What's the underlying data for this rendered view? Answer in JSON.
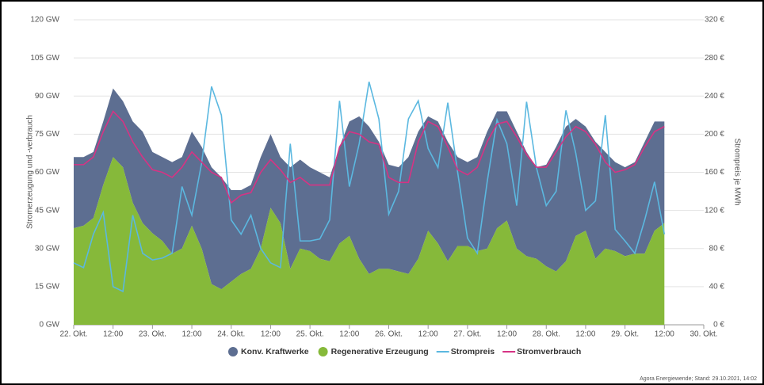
{
  "chart_data": {
    "type": "area-line",
    "ylabel": "Stromerzeugung und -verbrauch",
    "y2label": "Strompreis je MWh",
    "footer": "Agora Energiewende; Stand: 29.10.2021, 14:02",
    "grid": true,
    "legend": "bottom",
    "xlim": [
      0,
      192
    ],
    "xticks": [
      {
        "value": 0,
        "label": "22. Okt."
      },
      {
        "value": 12,
        "label": "12:00"
      },
      {
        "value": 24,
        "label": "23. Okt."
      },
      {
        "value": 36,
        "label": "12:00"
      },
      {
        "value": 48,
        "label": "24. Okt."
      },
      {
        "value": 60,
        "label": "12:00"
      },
      {
        "value": 72,
        "label": "25. Okt."
      },
      {
        "value": 84,
        "label": "12:00"
      },
      {
        "value": 96,
        "label": "26. Okt."
      },
      {
        "value": 108,
        "label": "12:00"
      },
      {
        "value": 120,
        "label": "27. Okt."
      },
      {
        "value": 132,
        "label": "12:00"
      },
      {
        "value": 144,
        "label": "28. Okt."
      },
      {
        "value": 156,
        "label": "12:00"
      },
      {
        "value": 168,
        "label": "29. Okt."
      },
      {
        "value": 180,
        "label": "12:00"
      },
      {
        "value": 192,
        "label": "30. Okt."
      }
    ],
    "ylim": [
      0,
      120
    ],
    "yticks": [
      {
        "value": 0,
        "label": "0 GW"
      },
      {
        "value": 15,
        "label": "15 GW"
      },
      {
        "value": 30,
        "label": "30 GW"
      },
      {
        "value": 45,
        "label": "45 GW"
      },
      {
        "value": 60,
        "label": "60 GW"
      },
      {
        "value": 75,
        "label": "75 GW"
      },
      {
        "value": 90,
        "label": "90 GW"
      },
      {
        "value": 105,
        "label": "105 GW"
      },
      {
        "value": 120,
        "label": "120 GW"
      }
    ],
    "y2lim": [
      0,
      320
    ],
    "y2ticks": [
      {
        "value": 0,
        "label": "0 €"
      },
      {
        "value": 40,
        "label": "40 €"
      },
      {
        "value": 80,
        "label": "80 €"
      },
      {
        "value": 120,
        "label": "120 €"
      },
      {
        "value": 160,
        "label": "160 €"
      },
      {
        "value": 200,
        "label": "200 €"
      },
      {
        "value": 240,
        "label": "240 €"
      },
      {
        "value": 280,
        "label": "280 €"
      },
      {
        "value": 320,
        "label": "320 €"
      }
    ],
    "x": [
      0,
      3,
      6,
      9,
      12,
      15,
      18,
      21,
      24,
      27,
      30,
      33,
      36,
      39,
      42,
      45,
      48,
      51,
      54,
      57,
      60,
      63,
      66,
      69,
      72,
      75,
      78,
      81,
      84,
      87,
      90,
      93,
      96,
      99,
      102,
      105,
      108,
      111,
      114,
      117,
      120,
      123,
      126,
      129,
      132,
      135,
      138,
      141,
      144,
      147,
      150,
      153,
      156,
      159,
      162,
      165,
      168,
      171,
      174,
      177,
      180
    ],
    "series": [
      {
        "name": "Konv. Kraftwerke",
        "kind": "area",
        "color": "#5d6e91",
        "values": [
          28,
          27,
          26,
          25,
          27,
          26,
          32,
          36,
          32,
          33,
          36,
          36,
          37,
          40,
          46,
          44,
          36,
          33,
          33,
          36,
          29,
          26,
          40,
          35,
          33,
          34,
          33,
          38,
          45,
          56,
          58,
          50,
          41,
          41,
          46,
          50,
          45,
          48,
          47,
          35,
          33,
          37,
          46,
          46,
          43,
          46,
          41,
          36,
          40,
          49,
          53,
          46,
          41,
          46,
          38,
          35,
          35,
          36,
          44,
          43,
          40
        ]
      },
      {
        "name": "Regenerative Erzeugung",
        "kind": "area",
        "color": "#86b93a",
        "values": [
          38,
          39,
          42,
          55,
          66,
          62,
          48,
          40,
          36,
          33,
          28,
          30,
          39,
          30,
          16,
          14,
          17,
          20,
          22,
          30,
          46,
          40,
          22,
          30,
          29,
          26,
          25,
          32,
          35,
          26,
          20,
          22,
          22,
          21,
          20,
          26,
          37,
          32,
          25,
          31,
          31,
          29,
          30,
          38,
          41,
          30,
          27,
          26,
          23,
          21,
          25,
          35,
          37,
          26,
          30,
          29,
          27,
          28,
          28,
          37,
          40
        ]
      },
      {
        "name": "Strompreis",
        "kind": "line",
        "axis": "y2",
        "color": "#5bb8e0",
        "values": [
          65,
          60,
          95,
          118,
          40,
          35,
          115,
          75,
          68,
          70,
          75,
          145,
          115,
          170,
          250,
          220,
          110,
          95,
          115,
          80,
          65,
          60,
          190,
          88,
          88,
          90,
          110,
          235,
          145,
          190,
          255,
          216,
          116,
          140,
          216,
          235,
          185,
          165,
          233,
          160,
          91,
          75,
          150,
          215,
          190,
          125,
          234,
          165,
          125,
          140,
          225,
          180,
          120,
          130,
          220,
          100,
          88,
          75,
          110,
          150,
          95
        ]
      },
      {
        "name": "Stromverbrauch",
        "kind": "line",
        "color": "#d63384",
        "values": [
          63,
          63,
          66,
          76,
          84,
          80,
          72,
          66,
          61,
          60,
          58,
          62,
          68,
          64,
          60,
          58,
          48,
          51,
          52,
          60,
          65,
          61,
          56,
          58,
          55,
          55,
          55,
          70,
          76,
          75,
          72,
          71,
          58,
          56,
          56,
          72,
          80,
          78,
          70,
          61,
          59,
          62,
          72,
          79,
          80,
          74,
          67,
          62,
          62,
          68,
          74,
          78,
          76,
          71,
          64,
          60,
          61,
          63,
          70,
          76,
          78
        ]
      }
    ]
  }
}
